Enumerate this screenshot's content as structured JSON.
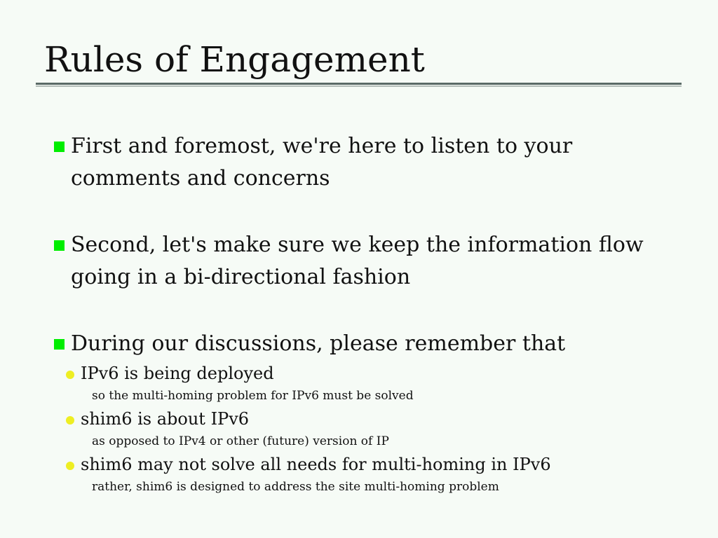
{
  "slide": {
    "title": "Rules of Engagement",
    "bullets": [
      {
        "text": "First and foremost,  we're here to listen to your comments and concerns"
      },
      {
        "text": "Second, let's make sure we keep the information flow going in a bi-directional fashion"
      },
      {
        "text": "During our discussions, please remember that"
      }
    ],
    "sub_points": [
      {
        "text": "IPv6 is being deployed",
        "note": "so the multi-homing problem for IPv6 must be solved"
      },
      {
        "text": "shim6 is about IPv6",
        "note": "as opposed to IPv4 or other (future) version of IP"
      },
      {
        "text": "shim6 may not solve all needs for multi-homing in IPv6",
        "note": "rather, shim6 is designed to address the site multi-homing problem"
      }
    ]
  },
  "colors": {
    "background": "#f6fbf6",
    "bullet_square": "#00ee00",
    "sub_bullet_dot": "#eeee22",
    "title_rule": "#5a6a66"
  }
}
